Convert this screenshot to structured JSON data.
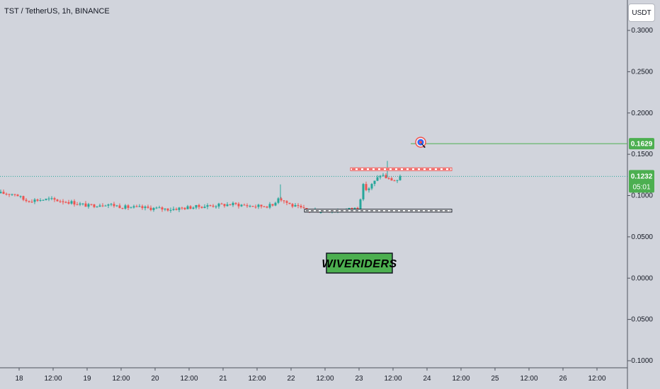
{
  "header": {
    "symbol_title": "TST / TetherUS, 1h, BINANCE",
    "currency_button": "USDT"
  },
  "colors": {
    "background": "#d1d4dc",
    "up_candle": "#26a69a",
    "down_candle": "#ef5350",
    "target_line": "#4caf50",
    "current_price_tag": "#4caf50",
    "watermark_fill": "#4caf50",
    "resistance_zone": "#ef5350"
  },
  "chart_data": {
    "type": "candlestick",
    "symbol": "TST / TetherUS",
    "interval": "1h",
    "exchange": "BINANCE",
    "y_ticks": [
      "0.3000",
      "0.2500",
      "0.2000",
      "0.1500",
      "0.1000",
      "0.0500",
      "0.0000",
      "-0.0500",
      "-0.1000"
    ],
    "x_ticks": [
      "18",
      "12:00",
      "19",
      "12:00",
      "20",
      "12:00",
      "21",
      "12:00",
      "22",
      "12:00",
      "23",
      "12:00",
      "24",
      "12:00",
      "25",
      "12:00",
      "26",
      "12:00"
    ],
    "current_price": "0.1232",
    "countdown": "05:01",
    "target_price": "0.1629",
    "watermark": "WIVERIDERS",
    "resistance_zone": [
      0.1302,
      0.1336
    ],
    "support_level": 0.0817
  }
}
